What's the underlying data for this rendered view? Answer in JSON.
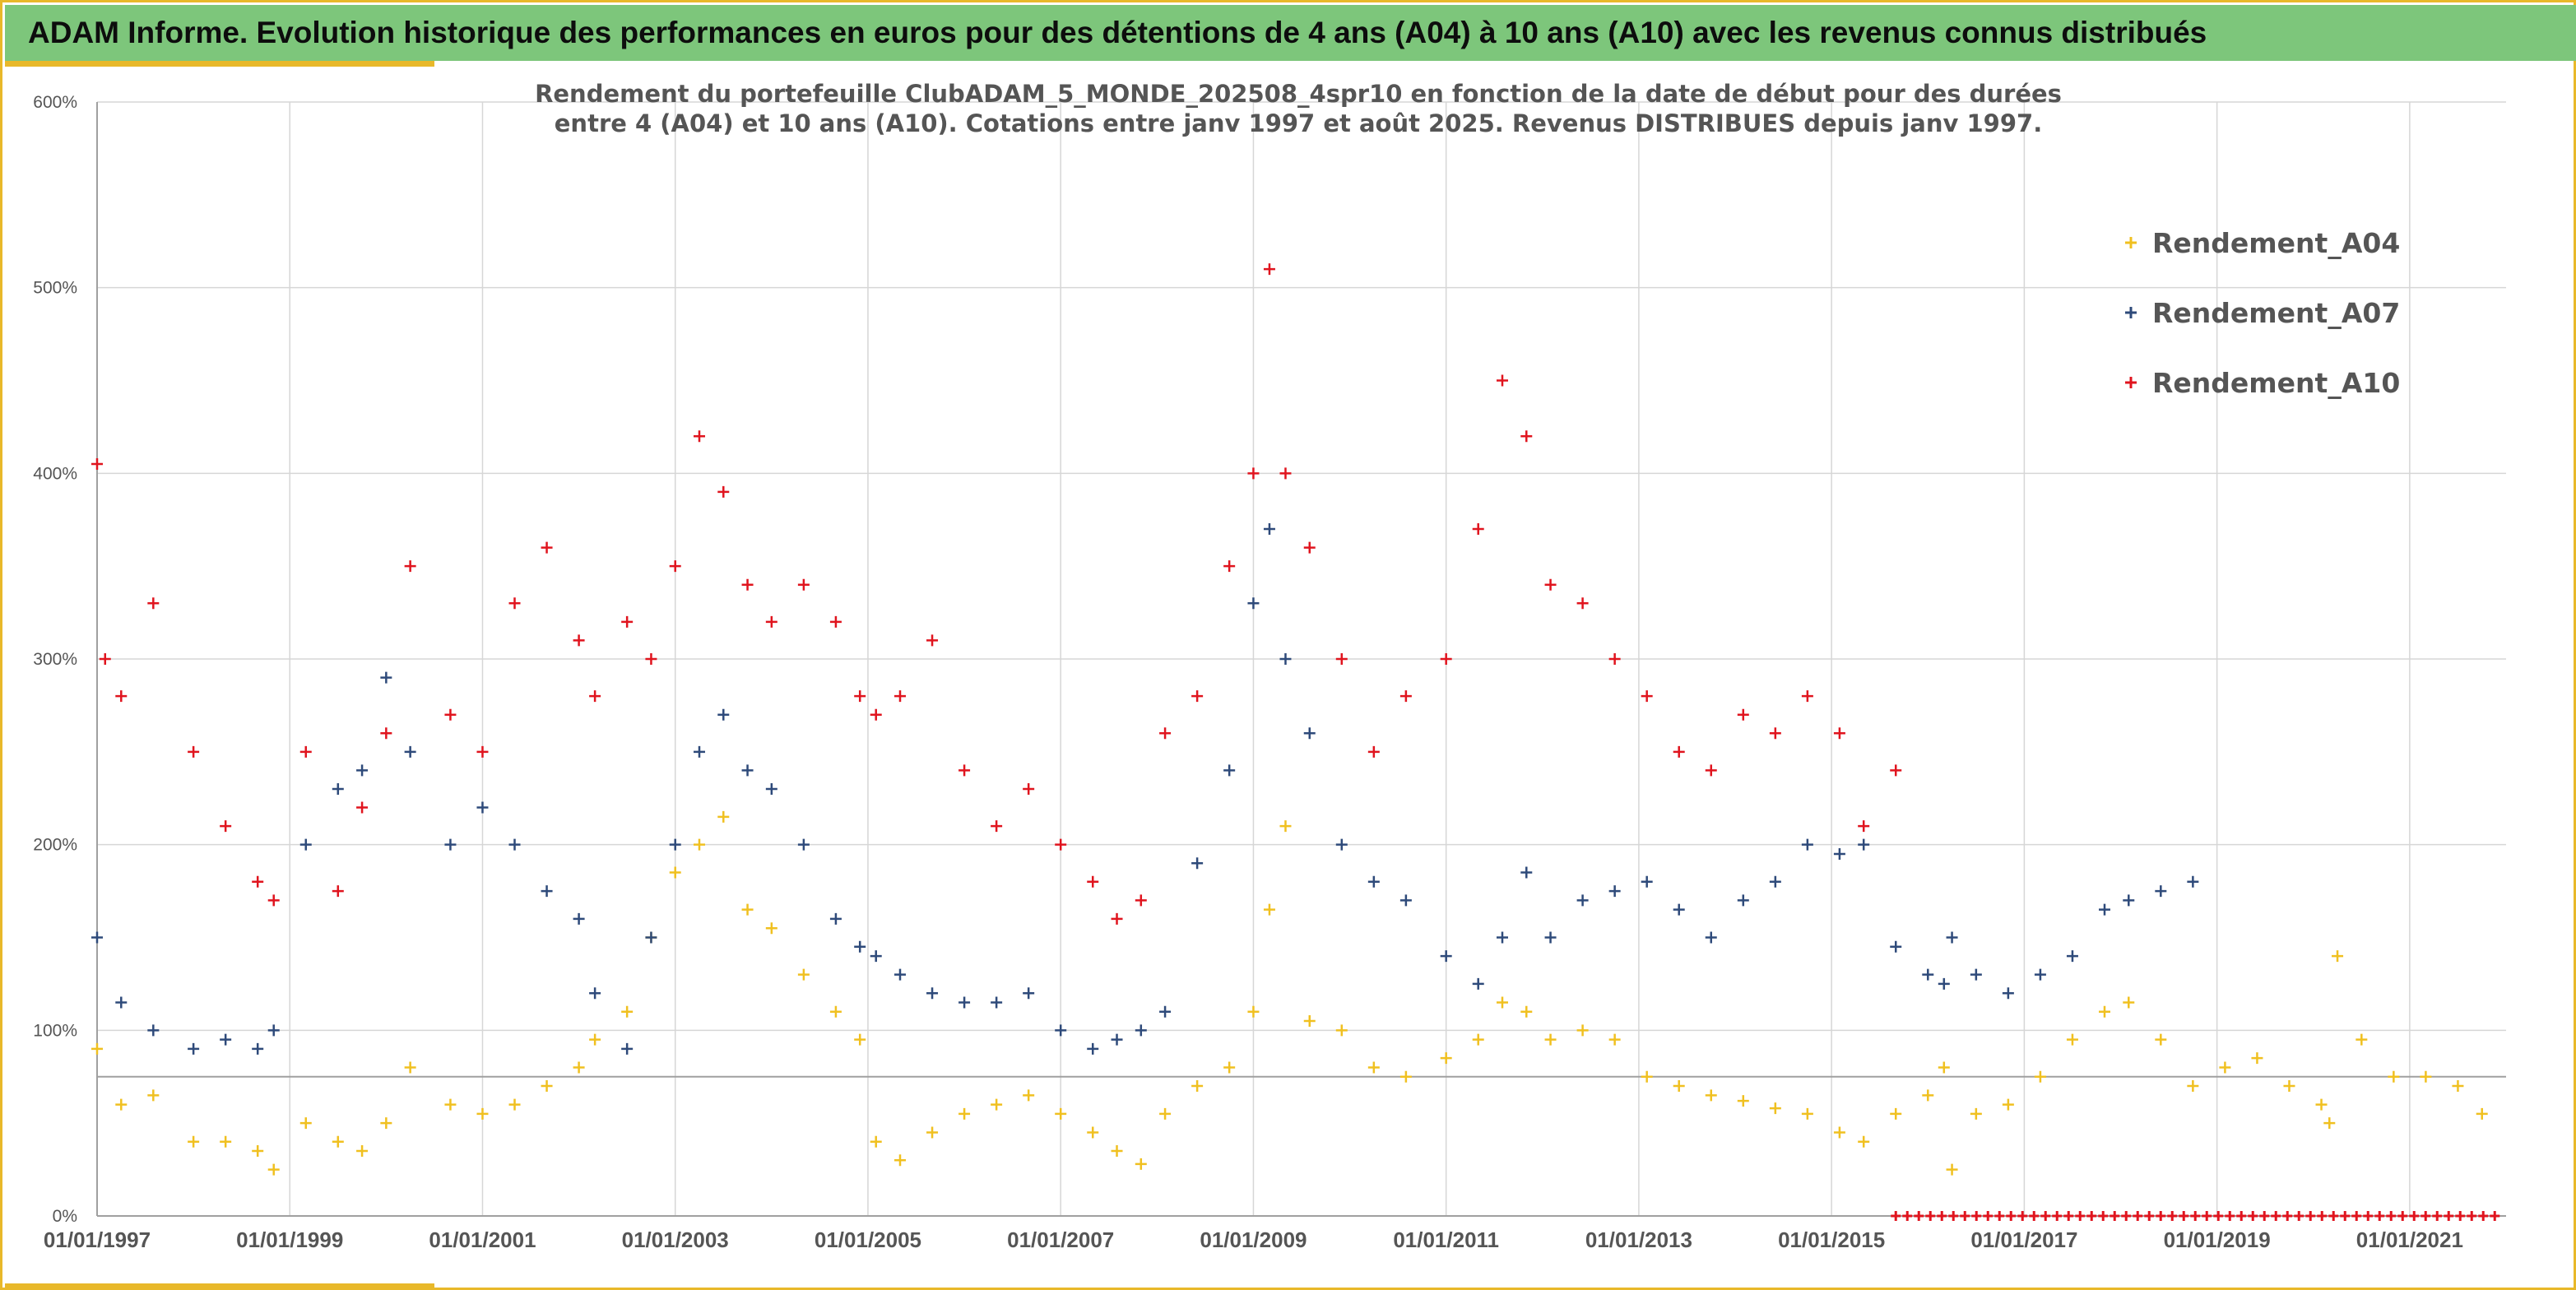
{
  "banner": {
    "title": "ADAM Informe. Evolution historique des performances en euros pour des détentions de 4 ans (A04) à 10 ans (A10) avec les revenus connus distribués"
  },
  "colors": {
    "banner_bg": "#7dc67b",
    "frame_accent": "#e8b82a",
    "A04": "#f0c020",
    "A07": "#2e4a7a",
    "A10": "#e0141e",
    "grid": "#d6d6d6"
  },
  "chart_data": {
    "type": "scatter",
    "marker": "plus",
    "title_line1": "Rendement du portefeuille ClubADAM_5_MONDE_202508_4spr10  en fonction de la date de début pour des durées",
    "title_line2": "entre 4 (A04) et 10 ans (A10). Cotations entre janv 1997 et août 2025. Revenus DISTRIBUES depuis janv 1997.",
    "xlabel": "",
    "ylabel": "",
    "x_range": [
      "1997-01-01",
      "2022-01-01"
    ],
    "ylim": [
      0,
      600
    ],
    "y_unit": "%",
    "yticks": [
      "0%",
      "100%",
      "200%",
      "300%",
      "400%",
      "500%",
      "600%"
    ],
    "xticks": [
      "01/01/1997",
      "01/01/1999",
      "01/01/2001",
      "01/01/2003",
      "01/01/2005",
      "01/01/2007",
      "01/01/2009",
      "01/01/2011",
      "01/01/2013",
      "01/01/2015",
      "01/01/2017",
      "01/01/2019",
      "01/01/2021"
    ],
    "grid": true,
    "reference_line_y": 75,
    "legend_position": "top-right",
    "series": [
      {
        "name": "Rendement_A04",
        "x": [
          "1997-01",
          "1997-04",
          "1997-08",
          "1998-01",
          "1998-05",
          "1998-09",
          "1998-11",
          "1999-03",
          "1999-07",
          "1999-10",
          "2000-01",
          "2000-04",
          "2000-09",
          "2001-01",
          "2001-05",
          "2001-09",
          "2002-01",
          "2002-03",
          "2002-07",
          "2002-10",
          "2003-01",
          "2003-04",
          "2003-07",
          "2003-10",
          "2004-01",
          "2004-05",
          "2004-09",
          "2004-12",
          "2005-02",
          "2005-05",
          "2005-09",
          "2006-01",
          "2006-05",
          "2006-09",
          "2007-01",
          "2007-05",
          "2007-08",
          "2007-11",
          "2008-02",
          "2008-06",
          "2008-10",
          "2009-01",
          "2009-03",
          "2009-05",
          "2009-08",
          "2009-12",
          "2010-04",
          "2010-08",
          "2011-01",
          "2011-05",
          "2011-08",
          "2011-11",
          "2012-02",
          "2012-06",
          "2012-10",
          "2013-02",
          "2013-06",
          "2013-10",
          "2014-02",
          "2014-06",
          "2014-10",
          "2015-02",
          "2015-05",
          "2015-09",
          "2016-01",
          "2016-03",
          "2016-04",
          "2016-07",
          "2016-11",
          "2017-03",
          "2017-07",
          "2017-11",
          "2018-02",
          "2018-06",
          "2018-10",
          "2019-02",
          "2019-06",
          "2019-10",
          "2020-02",
          "2020-03",
          "2020-04",
          "2020-07",
          "2020-11",
          "2021-03",
          "2021-07",
          "2021-10"
        ],
        "y": [
          90,
          60,
          65,
          40,
          40,
          35,
          25,
          50,
          40,
          35,
          50,
          80,
          60,
          55,
          60,
          70,
          80,
          95,
          110,
          150,
          185,
          200,
          215,
          165,
          155,
          130,
          110,
          95,
          40,
          30,
          45,
          55,
          60,
          65,
          55,
          45,
          35,
          28,
          55,
          70,
          80,
          110,
          165,
          210,
          105,
          100,
          80,
          75,
          85,
          95,
          115,
          110,
          95,
          100,
          95,
          75,
          70,
          65,
          62,
          58,
          55,
          45,
          40,
          55,
          65,
          80,
          25,
          55,
          60,
          75,
          95,
          110,
          115,
          95,
          70,
          80,
          85,
          70,
          60,
          50,
          140,
          95,
          75,
          75,
          70,
          55
        ]
      },
      {
        "name": "Rendement_A07",
        "x": [
          "1997-01",
          "1997-04",
          "1997-08",
          "1998-01",
          "1998-05",
          "1998-09",
          "1998-11",
          "1999-03",
          "1999-07",
          "1999-10",
          "2000-01",
          "2000-04",
          "2000-09",
          "2001-01",
          "2001-05",
          "2001-09",
          "2002-01",
          "2002-03",
          "2002-07",
          "2002-10",
          "2003-01",
          "2003-04",
          "2003-07",
          "2003-10",
          "2004-01",
          "2004-05",
          "2004-09",
          "2004-12",
          "2005-02",
          "2005-05",
          "2005-09",
          "2006-01",
          "2006-05",
          "2006-09",
          "2007-01",
          "2007-05",
          "2007-08",
          "2007-11",
          "2008-02",
          "2008-06",
          "2008-10",
          "2009-01",
          "2009-03",
          "2009-05",
          "2009-08",
          "2009-12",
          "2010-04",
          "2010-08",
          "2011-01",
          "2011-05",
          "2011-08",
          "2011-11",
          "2012-02",
          "2012-06",
          "2012-10",
          "2013-02",
          "2013-06",
          "2013-10",
          "2014-02",
          "2014-06",
          "2014-10",
          "2015-02",
          "2015-05",
          "2015-09",
          "2016-01",
          "2016-03",
          "2016-04",
          "2016-07",
          "2016-11",
          "2017-03",
          "2017-07",
          "2017-11",
          "2018-02",
          "2018-06",
          "2018-10"
        ],
        "y": [
          150,
          115,
          100,
          90,
          95,
          90,
          100,
          200,
          230,
          240,
          290,
          250,
          200,
          220,
          200,
          175,
          160,
          120,
          90,
          150,
          200,
          250,
          270,
          240,
          230,
          200,
          160,
          145,
          140,
          130,
          120,
          115,
          115,
          120,
          100,
          90,
          95,
          100,
          110,
          190,
          240,
          330,
          370,
          300,
          260,
          200,
          180,
          170,
          140,
          125,
          150,
          185,
          150,
          170,
          175,
          180,
          165,
          150,
          170,
          180,
          200,
          195,
          200,
          145,
          130,
          125,
          150,
          130,
          120,
          130,
          140,
          165,
          170,
          175,
          180
        ]
      },
      {
        "name": "Rendement_A10",
        "x": [
          "1997-01",
          "1997-02",
          "1997-04",
          "1997-08",
          "1998-01",
          "1998-05",
          "1998-09",
          "1998-11",
          "1999-03",
          "1999-07",
          "1999-10",
          "2000-01",
          "2000-04",
          "2000-09",
          "2001-01",
          "2001-05",
          "2001-09",
          "2002-01",
          "2002-03",
          "2002-07",
          "2002-10",
          "2003-01",
          "2003-04",
          "2003-07",
          "2003-10",
          "2004-01",
          "2004-05",
          "2004-09",
          "2004-12",
          "2005-02",
          "2005-05",
          "2005-09",
          "2006-01",
          "2006-05",
          "2006-09",
          "2007-01",
          "2007-05",
          "2007-08",
          "2007-11",
          "2008-02",
          "2008-06",
          "2008-10",
          "2009-01",
          "2009-03",
          "2009-05",
          "2009-08",
          "2009-12",
          "2010-04",
          "2010-08",
          "2011-01",
          "2011-05",
          "2011-08",
          "2011-11",
          "2012-02",
          "2012-06",
          "2012-10",
          "2013-02",
          "2013-06",
          "2013-10",
          "2014-02",
          "2014-06",
          "2014-10",
          "2015-02",
          "2015-05",
          "2015-09"
        ],
        "y": [
          405,
          300,
          280,
          330,
          250,
          210,
          180,
          170,
          250,
          175,
          220,
          260,
          350,
          270,
          250,
          330,
          360,
          310,
          280,
          320,
          300,
          350,
          420,
          390,
          340,
          320,
          340,
          320,
          280,
          270,
          280,
          310,
          240,
          210,
          230,
          200,
          180,
          160,
          170,
          260,
          280,
          350,
          400,
          510,
          400,
          360,
          300,
          250,
          280,
          300,
          370,
          450,
          420,
          340,
          330,
          300,
          280,
          250,
          240,
          270,
          260,
          280,
          260,
          210,
          240
        ]
      }
    ],
    "distribution_markers": {
      "color": "#e0141e",
      "y": 0,
      "x_start": "2015-09",
      "x_end": "2022-01"
    }
  }
}
